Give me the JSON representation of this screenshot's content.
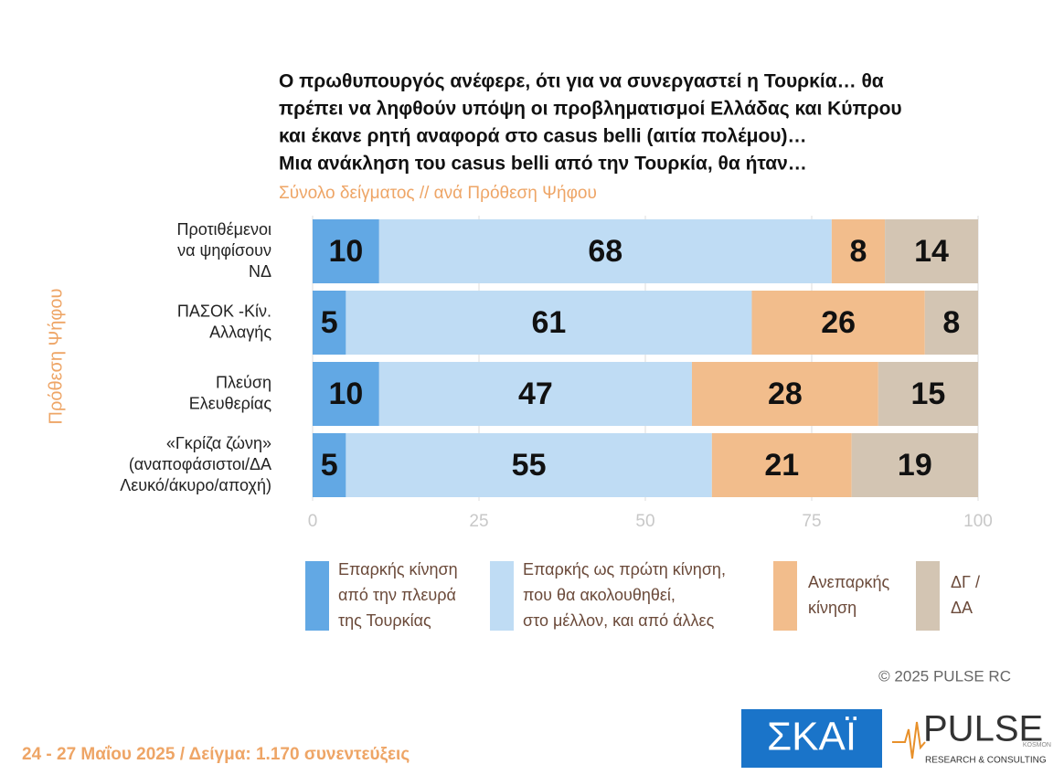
{
  "chart_data": {
    "type": "bar",
    "title": [
      "Ο πρωθυπουργός ανέφερε, ότι για να συνεργαστεί η Τουρκία… θα",
      "πρέπει να ληφθούν υπόψη οι προβληματισμοί Ελλάδας και Κύπρου",
      "και έκανε ρητή αναφορά στο casus belli (αιτία πολέμου)…",
      "Μια ανάκληση του casus belli από την Τουρκία, θα ήταν…"
    ],
    "subtitle": "Σύνολο δείγματος // ανά Πρόθεση Ψήφου",
    "y_label": "Πρόθεση Ψήφου",
    "categories": [
      [
        "Προτιθέμενοι",
        "να ψηφίσουν",
        "ΝΔ"
      ],
      [
        "ΠΑΣΟΚ -Κίν.",
        "Αλλαγής"
      ],
      [
        "Πλεύση",
        "Ελευθερίας"
      ],
      [
        "«Γκρίζα ζώνη»",
        "(αναποφάσιστοι/ΔΑ",
        "Λευκό/άκυρο/αποχή)"
      ]
    ],
    "series": [
      {
        "name": [
          "Επαρκής κίνηση",
          "από την πλευρά",
          "της Τουρκίας"
        ],
        "color": "#62a8e4",
        "values": [
          10,
          5,
          10,
          5
        ]
      },
      {
        "name": [
          "Επαρκής ως πρώτη κίνηση,",
          "που θα ακολουθηθεί,",
          "στο μέλλον, και από άλλες"
        ],
        "color": "#bfdcf4",
        "values": [
          68,
          61,
          47,
          55
        ]
      },
      {
        "name": [
          "Ανεπαρκής",
          "κίνηση"
        ],
        "color": "#f2bd8c",
        "values": [
          8,
          26,
          28,
          21
        ]
      },
      {
        "name": [
          "ΔΓ /",
          "ΔΑ"
        ],
        "color": "#d3c5b3",
        "values": [
          14,
          8,
          15,
          19
        ]
      }
    ],
    "xlim": [
      0,
      100
    ],
    "xticks": [
      0,
      25,
      50,
      75,
      100
    ],
    "grid": true,
    "footer": "24 - 27 Μαΐου 2025  /  Δείγμα:  1.170 συνεντεύξεις",
    "copyright": "©  2025  PULSE RC",
    "logos": {
      "skai": "ΣΚΑΪ",
      "pulse": "PULSE",
      "pulse_sub": "RESEARCH & CONSULTING",
      "pulse_tag": "KOSMON"
    }
  }
}
